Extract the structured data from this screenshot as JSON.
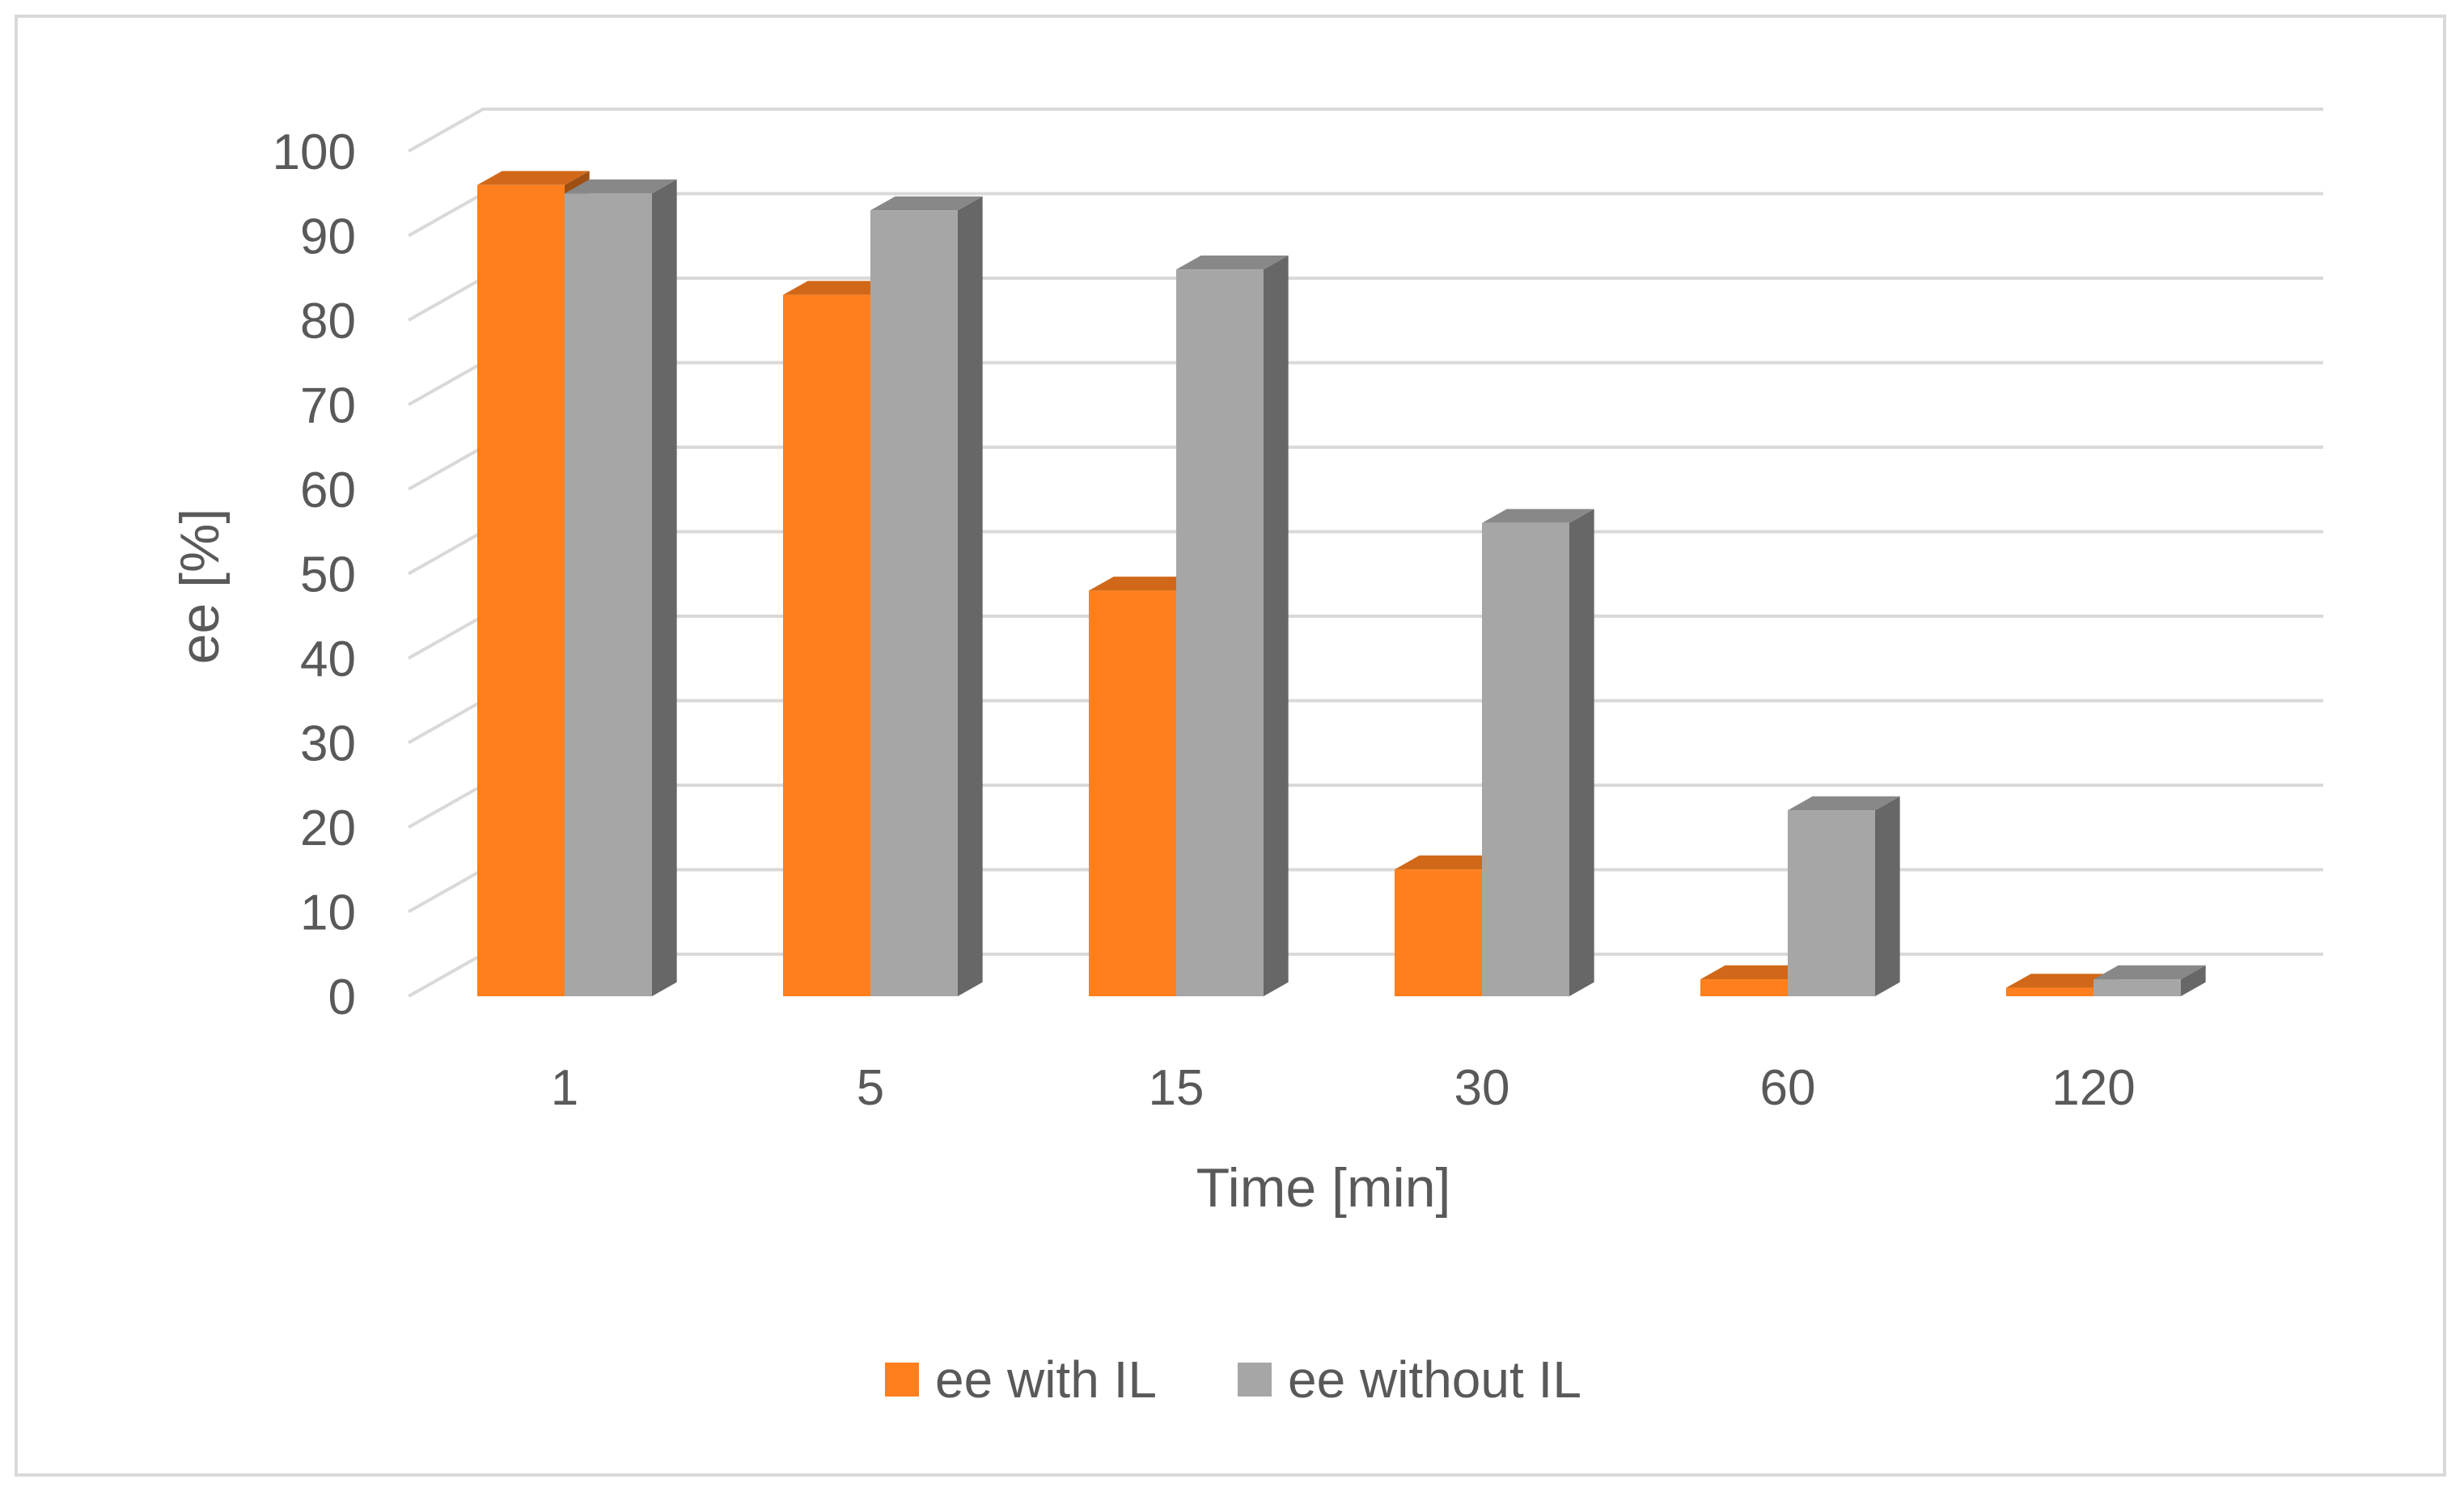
{
  "chart_data": {
    "type": "bar",
    "style": "3d-clustered-column",
    "categories": [
      "1",
      "5",
      "15",
      "30",
      "60",
      "120"
    ],
    "series": [
      {
        "name": "ee with IL",
        "values": [
          96,
          83,
          48,
          15,
          2,
          1
        ],
        "color": "#ff7f1e"
      },
      {
        "name": "ee without IL",
        "values": [
          95,
          93,
          86,
          56,
          22,
          2
        ],
        "color": "#a6a6a6"
      }
    ],
    "xlabel": "Time [min]",
    "ylabel": "ee [%]",
    "ylim": [
      0,
      100
    ],
    "yticks": [
      0,
      10,
      20,
      30,
      40,
      50,
      60,
      70,
      80,
      90,
      100
    ],
    "grid": true,
    "legend_position": "bottom"
  }
}
